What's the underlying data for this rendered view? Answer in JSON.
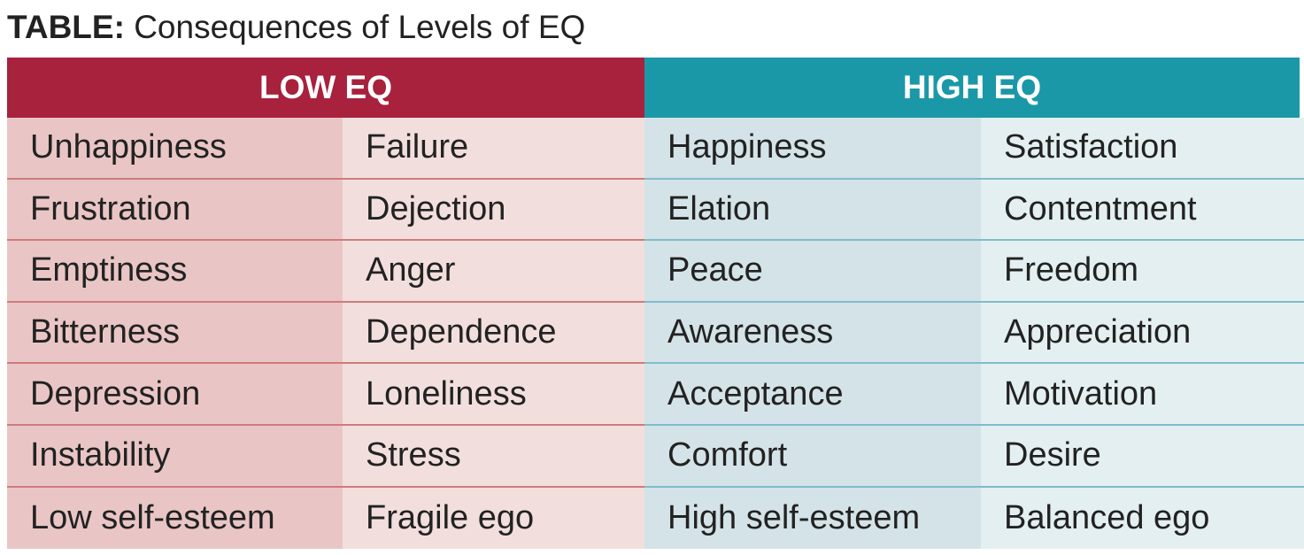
{
  "header": {
    "label": "TABLE:",
    "title": "Consequences of Levels of EQ"
  },
  "table": {
    "headers": [
      "LOW EQ",
      "HIGH EQ"
    ],
    "rows": [
      [
        "Unhappiness",
        "Failure",
        "Happiness",
        "Satisfaction"
      ],
      [
        "Frustration",
        "Dejection",
        "Elation",
        "Contentment"
      ],
      [
        "Emptiness",
        "Anger",
        "Peace",
        "Freedom"
      ],
      [
        "Bitterness",
        "Dependence",
        "Awareness",
        "Appreciation"
      ],
      [
        "Depression",
        "Loneliness",
        "Acceptance",
        "Motivation"
      ],
      [
        "Instability",
        "Stress",
        "Comfort",
        "Desire"
      ],
      [
        "Low self-esteem",
        "Fragile ego",
        "High self-esteem",
        "Balanced ego"
      ]
    ]
  }
}
